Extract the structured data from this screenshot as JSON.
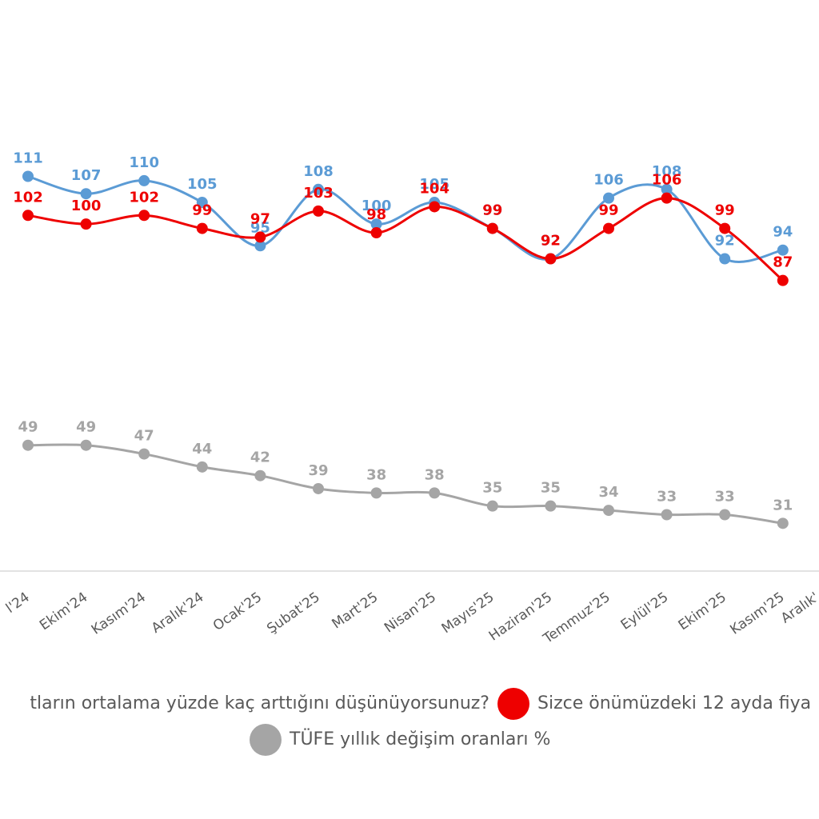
{
  "chart_data": {
    "type": "line",
    "categories": [
      "l'24",
      "Ekim'24",
      "Kasım'24",
      "Aralık'24",
      "Ocak'25",
      "Şubat'25",
      "Mart'25",
      "Nisan'25",
      "Mayıs'25",
      "Haziran'25",
      "Temmuz'25",
      "Eylül'25",
      "Ekim'25",
      "Kasım'25",
      "Aralık'"
    ],
    "series": [
      {
        "name": "tların ortalama yüzde kaç arttığını düşünüyorsunuz?",
        "color": "#5b9bd5",
        "values": [
          111,
          107,
          110,
          105,
          95,
          108,
          100,
          105,
          99,
          92,
          106,
          108,
          92,
          94,
          null
        ]
      },
      {
        "name": "Sizce önümüzdeki 12 ayda fiya",
        "color": "#ee0000",
        "values": [
          102,
          100,
          102,
          99,
          97,
          103,
          98,
          104,
          99,
          92,
          99,
          106,
          99,
          87,
          null
        ]
      },
      {
        "name": "TÜFE yıllık değişim oranları %",
        "color": "#a5a5a5",
        "values": [
          49,
          49,
          47,
          44,
          42,
          39,
          38,
          38,
          35,
          35,
          34,
          33,
          33,
          31,
          null
        ]
      }
    ],
    "ylim": [
      20,
      150
    ]
  }
}
